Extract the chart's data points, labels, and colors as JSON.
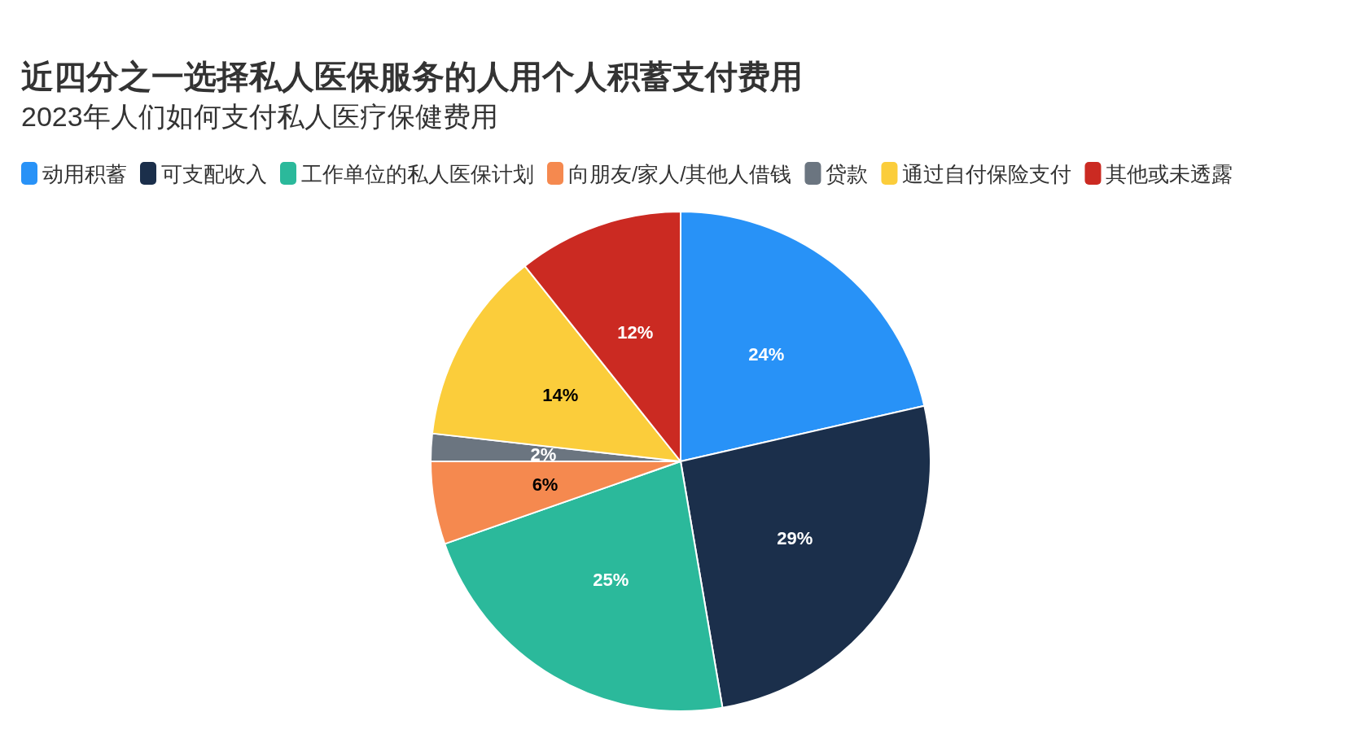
{
  "chart_data": {
    "type": "pie",
    "title": "近四分之一选择私人医保服务的人用个人积蓄支付费用",
    "subtitle": "2023年人们如何支付私人医疗保健费用",
    "categories": [
      "动用积蓄",
      "可支配收入",
      "工作单位的私人医保计划",
      "向朋友/家人/其他人借钱",
      "贷款",
      "通过自付保险支付",
      "其他或未透露"
    ],
    "values": [
      24,
      29,
      25,
      6,
      2,
      14,
      12
    ],
    "colors": [
      "#2892f7",
      "#1b2f4b",
      "#2bb99b",
      "#f5894f",
      "#6b7580",
      "#fbcd3b",
      "#cb2a22"
    ],
    "value_labels": [
      "24%",
      "29%",
      "25%",
      "6%",
      "2%",
      "14%",
      "12%"
    ],
    "legend": "top"
  }
}
